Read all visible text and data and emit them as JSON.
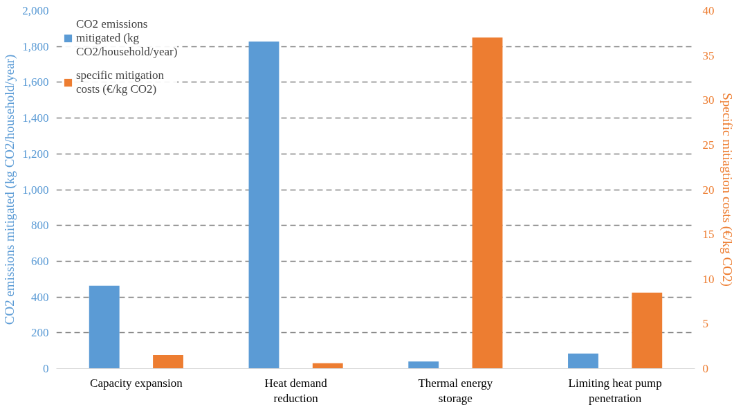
{
  "chart_data": {
    "type": "bar",
    "categories": [
      "Capacity expansion",
      "Heat demand reduction",
      "Thermal energy storage",
      "Limiting heat pump penetration"
    ],
    "series": [
      {
        "name": "CO2 emissions mitigated (kg CO2/household/year)",
        "color": "#5b9bd5",
        "values": [
          463,
          1828,
          40,
          84
        ]
      },
      {
        "name": "specific mitigation costs (€/kg CO2)",
        "color": "#ed7d31",
        "values": [
          1.5,
          0.6,
          37.0,
          8.5
        ],
        "axis": "y2"
      }
    ],
    "ylabel": "CO2 emissions mitigated (kg CO2/household/year)",
    "y2label": "Specific mitiagtion costs (€/kg CO2)",
    "ylim": [
      0,
      2000
    ],
    "yticks": [
      0,
      200,
      400,
      600,
      800,
      {
        "value": 1000,
        "label": "1,000"
      },
      {
        "value": 1200,
        "label": "1,200"
      },
      {
        "value": 1400,
        "label": "1,400"
      },
      {
        "value": 1600,
        "label": "1,600"
      },
      {
        "value": 1800,
        "label": "1,800"
      },
      {
        "value": 2000,
        "label": "2,000"
      }
    ],
    "y2lim": [
      0,
      40
    ],
    "y2ticks": [
      0,
      5,
      10,
      15,
      20,
      25,
      30,
      35,
      40
    ],
    "grid": "y",
    "legend": "top left"
  }
}
